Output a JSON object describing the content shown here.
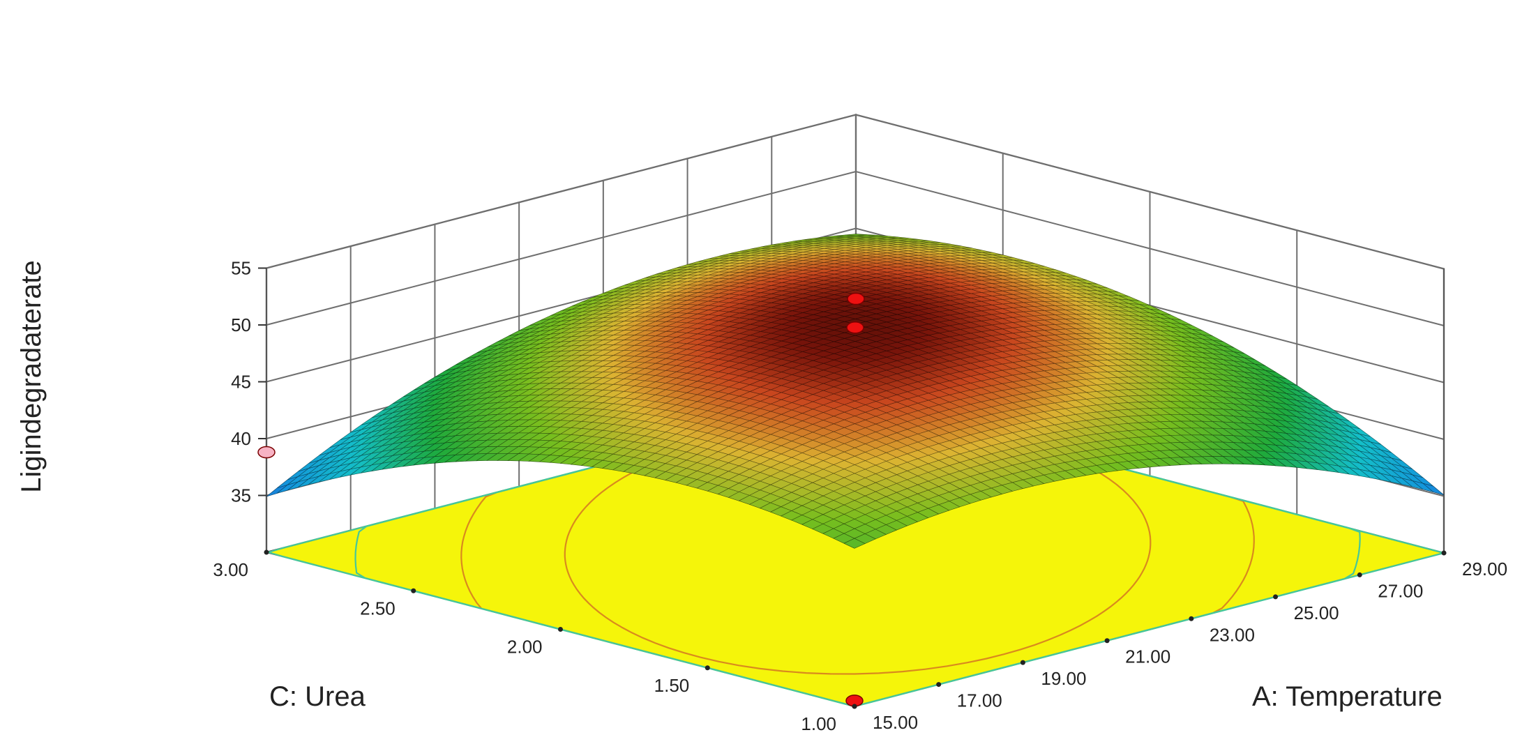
{
  "chart_data": {
    "type": "surface3d",
    "zlabel": "Ligindegradaterate",
    "xlabel": "A: Temperature",
    "ylabel": "C: Urea",
    "z_ticks": [
      "35",
      "40",
      "45",
      "50",
      "55"
    ],
    "x_ticks": [
      "15.00",
      "17.00",
      "19.00",
      "21.00",
      "23.00",
      "25.00",
      "27.00",
      "29.00"
    ],
    "y_ticks": [
      "1.00",
      "1.50",
      "2.00",
      "2.50",
      "3.00"
    ],
    "x_range": [
      15,
      29
    ],
    "y_range": [
      1,
      3
    ],
    "z_range": [
      30,
      55
    ],
    "grid": true,
    "floor_contour_color": "#f5f50a",
    "design_points": [
      {
        "x": 22,
        "y": 2,
        "z": 49.8
      },
      {
        "x": 15,
        "y": 1,
        "z": 30.5
      },
      {
        "x": 29,
        "y": 3,
        "z": 38.8
      },
      {
        "x": 15,
        "y": 3,
        "z": 38.8
      }
    ]
  }
}
